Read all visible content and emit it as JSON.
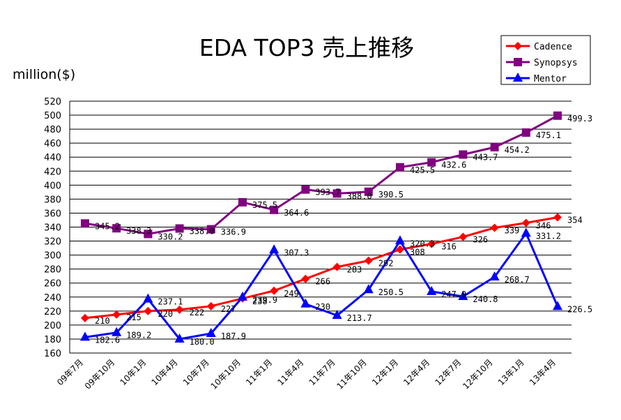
{
  "chart_data": {
    "type": "line",
    "title": "EDA TOP3 売上推移",
    "ylabel": "million($)",
    "xlabel": "",
    "ylim": [
      160,
      520
    ],
    "ystep": 20,
    "grid": true,
    "legend_position": "top-right",
    "categories": [
      "09年7月",
      "09年10月",
      "10年1月",
      "10年4月",
      "10年7月",
      "10年10月",
      "11年1月",
      "11年4月",
      "11年7月",
      "11年10月",
      "12年1月",
      "12年4月",
      "12年7月",
      "12年10月",
      "13年1月",
      "13年4月"
    ],
    "series": [
      {
        "name": "Cadence",
        "color": "#ff0000",
        "marker": "diamond",
        "values": [
          210,
          215,
          220,
          222,
          227,
          238,
          249,
          266,
          283,
          292,
          308,
          316,
          326,
          339,
          346,
          354
        ],
        "labels": [
          "210",
          "215",
          "220",
          "222",
          "227",
          "238",
          "249",
          "266",
          "283",
          "292",
          "308",
          "316",
          "326",
          "339",
          "346",
          "354"
        ]
      },
      {
        "name": "Synopsys",
        "color": "#800080",
        "marker": "square",
        "values": [
          345.2,
          338.3,
          330.2,
          338.0,
          336.9,
          375.5,
          364.6,
          393.7,
          388.0,
          390.5,
          425.5,
          432.6,
          443.7,
          454.2,
          475.1,
          499.3
        ],
        "labels": [
          "345.2",
          "338.3",
          "330.2",
          "338.0",
          "336.9",
          "375.5",
          "364.6",
          "393.7",
          "388.0",
          "390.5",
          "425.5",
          "432.6",
          "443.7",
          "454.2",
          "475.1",
          "499.3"
        ]
      },
      {
        "name": "Mentor",
        "color": "#0000ff",
        "marker": "triangle",
        "values": [
          182.6,
          189.2,
          237.1,
          180.0,
          187.9,
          239.9,
          307.3,
          230.0,
          213.7,
          250.5,
          320.3,
          247.9,
          240.8,
          268.7,
          331.2,
          226.5
        ],
        "labels": [
          "182.6",
          "189.2",
          "237.1",
          "180.0",
          "187.9",
          "239.9",
          "307.3",
          "230",
          "213.7",
          "250.5",
          "320.3",
          "247.9",
          "240.8",
          "268.7",
          "331.2",
          "226.5"
        ]
      }
    ]
  }
}
